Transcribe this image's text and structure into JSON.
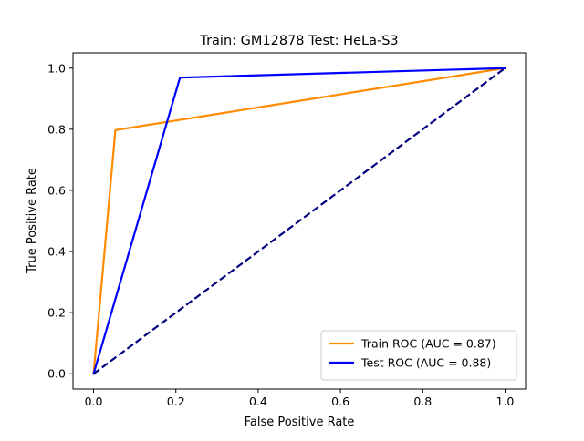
{
  "chart_data": {
    "type": "line",
    "title": "Train: GM12878   Test: HeLa-S3",
    "xlabel": "False Positive Rate",
    "ylabel": "True Positive Rate",
    "xlim": [
      -0.05,
      1.05
    ],
    "ylim": [
      -0.05,
      1.05
    ],
    "xticks": [
      {
        "value": 0.0,
        "label": "0.0"
      },
      {
        "value": 0.2,
        "label": "0.2"
      },
      {
        "value": 0.4,
        "label": "0.4"
      },
      {
        "value": 0.6,
        "label": "0.6"
      },
      {
        "value": 0.8,
        "label": "0.8"
      },
      {
        "value": 1.0,
        "label": "1.0"
      }
    ],
    "yticks": [
      {
        "value": 0.0,
        "label": "0.0"
      },
      {
        "value": 0.2,
        "label": "0.2"
      },
      {
        "value": 0.4,
        "label": "0.4"
      },
      {
        "value": 0.6,
        "label": "0.6"
      },
      {
        "value": 0.8,
        "label": "0.8"
      },
      {
        "value": 1.0,
        "label": "1.0"
      }
    ],
    "grid": false,
    "legend_position": "bottom-right",
    "series": [
      {
        "name": "Train ROC (AUC = 0.87)",
        "color": "#ff8c00",
        "dash": "solid",
        "x": [
          0.0,
          0.053,
          1.0
        ],
        "y": [
          0.0,
          0.797,
          1.0
        ]
      },
      {
        "name": "Test ROC (AUC = 0.88)",
        "color": "#0000ff",
        "dash": "solid",
        "x": [
          0.0,
          0.21,
          1.0
        ],
        "y": [
          0.0,
          0.969,
          1.0
        ]
      },
      {
        "color": "#000080",
        "dash": "dashed",
        "x": [
          0.0,
          1.0
        ],
        "y": [
          0.0,
          1.0
        ]
      }
    ]
  }
}
